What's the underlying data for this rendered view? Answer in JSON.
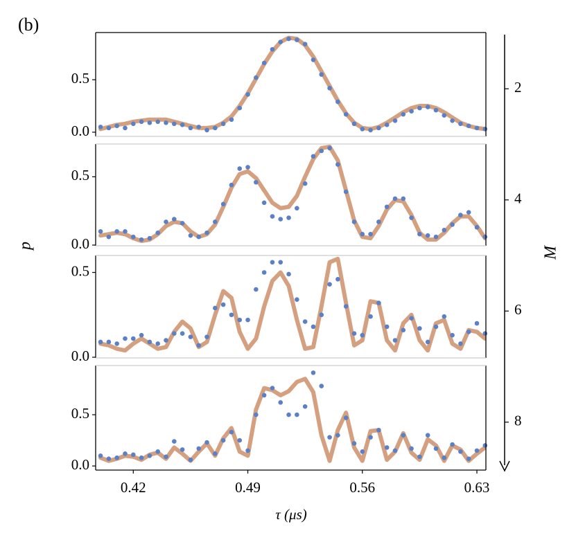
{
  "chart_data": {
    "type": "line",
    "panel_label": "(b)",
    "xlabel": "τ (μs)",
    "ylabel": "p",
    "y2label": "M",
    "x": [
      0.4,
      0.405,
      0.41,
      0.415,
      0.42,
      0.425,
      0.43,
      0.435,
      0.44,
      0.445,
      0.45,
      0.455,
      0.46,
      0.465,
      0.47,
      0.475,
      0.48,
      0.485,
      0.49,
      0.495,
      0.5,
      0.505,
      0.51,
      0.515,
      0.52,
      0.525,
      0.53,
      0.535,
      0.54,
      0.545,
      0.55,
      0.555,
      0.56,
      0.565,
      0.57,
      0.575,
      0.58,
      0.585,
      0.59,
      0.595,
      0.6,
      0.605,
      0.61,
      0.615,
      0.62,
      0.625,
      0.63,
      0.635
    ],
    "xlim": [
      0.397,
      0.6355
    ],
    "xticks": [
      0.42,
      0.49,
      0.56,
      0.63
    ],
    "y2lim": [
      1.0,
      8.85
    ],
    "y2ticks": [
      2,
      4,
      6,
      8
    ],
    "panels": [
      {
        "ylim": [
          -0.04,
          0.95
        ],
        "yticks": [
          {
            "value": 0,
            "label": "0.0"
          },
          {
            "value": 0.5,
            "label": "0.5"
          }
        ],
        "series": [
          {
            "type": "line",
            "color": "#d4a07f",
            "values": [
              0.03,
              0.05,
              0.07,
              0.08,
              0.1,
              0.11,
              0.12,
              0.12,
              0.12,
              0.1,
              0.08,
              0.06,
              0.04,
              0.04,
              0.05,
              0.09,
              0.15,
              0.25,
              0.37,
              0.51,
              0.65,
              0.77,
              0.86,
              0.9,
              0.89,
              0.83,
              0.72,
              0.58,
              0.44,
              0.3,
              0.18,
              0.09,
              0.04,
              0.03,
              0.05,
              0.09,
              0.14,
              0.19,
              0.23,
              0.25,
              0.25,
              0.23,
              0.19,
              0.14,
              0.09,
              0.06,
              0.04,
              0.03
            ]
          },
          {
            "type": "scatter",
            "color": "#5b80c6",
            "values": [
              0.05,
              0.04,
              0.06,
              0.04,
              0.08,
              0.1,
              0.09,
              0.1,
              0.09,
              0.08,
              0.07,
              0.04,
              0.05,
              0.02,
              0.04,
              0.08,
              0.12,
              0.23,
              0.36,
              0.52,
              0.66,
              0.79,
              0.86,
              0.89,
              0.88,
              0.84,
              0.69,
              0.55,
              0.42,
              0.29,
              0.17,
              0.08,
              0.03,
              0.02,
              0.04,
              0.07,
              0.11,
              0.17,
              0.2,
              0.23,
              0.24,
              0.21,
              0.16,
              0.11,
              0.08,
              0.06,
              0.04,
              0.03
            ]
          }
        ]
      },
      {
        "ylim": [
          -0.005,
          0.74
        ],
        "yticks": [
          {
            "value": 0,
            "label": "0.0"
          },
          {
            "value": 0.5,
            "label": "0.5"
          }
        ],
        "series": [
          {
            "type": "line",
            "color": "#d4a07f",
            "values": [
              0.07,
              0.08,
              0.09,
              0.08,
              0.05,
              0.03,
              0.04,
              0.08,
              0.14,
              0.17,
              0.16,
              0.1,
              0.06,
              0.08,
              0.15,
              0.28,
              0.42,
              0.52,
              0.54,
              0.49,
              0.4,
              0.31,
              0.27,
              0.28,
              0.36,
              0.5,
              0.63,
              0.71,
              0.72,
              0.62,
              0.4,
              0.18,
              0.06,
              0.05,
              0.14,
              0.26,
              0.33,
              0.32,
              0.22,
              0.09,
              0.04,
              0.04,
              0.09,
              0.16,
              0.21,
              0.21,
              0.14,
              0.05
            ]
          },
          {
            "type": "scatter",
            "color": "#5b80c6",
            "values": [
              0.1,
              0.06,
              0.1,
              0.1,
              0.06,
              0.04,
              0.05,
              0.09,
              0.17,
              0.19,
              0.16,
              0.07,
              0.06,
              0.09,
              0.17,
              0.3,
              0.44,
              0.56,
              0.57,
              0.46,
              0.31,
              0.21,
              0.19,
              0.2,
              0.27,
              0.45,
              0.65,
              0.69,
              0.71,
              0.59,
              0.39,
              0.17,
              0.08,
              0.08,
              0.17,
              0.28,
              0.34,
              0.34,
              0.2,
              0.08,
              0.07,
              0.06,
              0.11,
              0.15,
              0.22,
              0.24,
              0.13,
              0.06
            ]
          }
        ]
      },
      {
        "ylim": [
          -0.004,
          0.6
        ],
        "yticks": [
          {
            "value": 0,
            "label": "0.0"
          },
          {
            "value": 0.5,
            "label": "0.5"
          }
        ],
        "series": [
          {
            "type": "line",
            "color": "#d4a07f",
            "values": [
              0.08,
              0.07,
              0.05,
              0.04,
              0.08,
              0.11,
              0.08,
              0.05,
              0.06,
              0.15,
              0.21,
              0.17,
              0.06,
              0.09,
              0.25,
              0.39,
              0.35,
              0.15,
              0.05,
              0.11,
              0.3,
              0.45,
              0.5,
              0.42,
              0.22,
              0.05,
              0.06,
              0.3,
              0.56,
              0.58,
              0.32,
              0.07,
              0.1,
              0.33,
              0.32,
              0.1,
              0.04,
              0.2,
              0.25,
              0.1,
              0.04,
              0.2,
              0.22,
              0.08,
              0.05,
              0.16,
              0.15,
              0.11
            ]
          },
          {
            "type": "scatter",
            "color": "#5b80c6",
            "values": [
              0.09,
              0.09,
              0.08,
              0.11,
              0.11,
              0.13,
              0.09,
              0.08,
              0.1,
              0.14,
              0.14,
              0.12,
              0.07,
              0.12,
              0.29,
              0.31,
              0.25,
              0.22,
              0.22,
              0.4,
              0.5,
              0.56,
              0.56,
              0.49,
              0.34,
              0.21,
              0.18,
              0.25,
              0.43,
              0.46,
              0.3,
              0.14,
              0.13,
              0.24,
              0.32,
              0.18,
              0.1,
              0.16,
              0.23,
              0.17,
              0.09,
              0.18,
              0.24,
              0.13,
              0.08,
              0.15,
              0.2,
              0.14
            ]
          }
        ]
      },
      {
        "ylim": [
          -0.04,
          0.98
        ],
        "yticks": [
          {
            "value": 0,
            "label": "0.0"
          },
          {
            "value": 0.5,
            "label": "0.5"
          }
        ],
        "series": [
          {
            "type": "line",
            "color": "#d4a07f",
            "values": [
              0.08,
              0.05,
              0.07,
              0.1,
              0.09,
              0.06,
              0.11,
              0.13,
              0.07,
              0.18,
              0.12,
              0.05,
              0.14,
              0.22,
              0.1,
              0.27,
              0.37,
              0.14,
              0.1,
              0.55,
              0.76,
              0.74,
              0.69,
              0.73,
              0.82,
              0.85,
              0.72,
              0.3,
              0.05,
              0.35,
              0.52,
              0.18,
              0.05,
              0.34,
              0.35,
              0.06,
              0.14,
              0.32,
              0.13,
              0.06,
              0.26,
              0.2,
              0.05,
              0.2,
              0.16,
              0.05,
              0.12,
              0.18
            ]
          },
          {
            "type": "scatter",
            "color": "#5b80c6",
            "values": [
              0.1,
              0.07,
              0.08,
              0.12,
              0.11,
              0.08,
              0.1,
              0.14,
              0.09,
              0.24,
              0.16,
              0.06,
              0.17,
              0.23,
              0.12,
              0.25,
              0.33,
              0.25,
              0.15,
              0.5,
              0.69,
              0.76,
              0.62,
              0.5,
              0.5,
              0.58,
              0.91,
              0.78,
              0.28,
              0.3,
              0.47,
              0.22,
              0.14,
              0.28,
              0.35,
              0.18,
              0.15,
              0.3,
              0.17,
              0.09,
              0.3,
              0.17,
              0.08,
              0.21,
              0.14,
              0.07,
              0.15,
              0.2
            ]
          }
        ]
      }
    ]
  }
}
